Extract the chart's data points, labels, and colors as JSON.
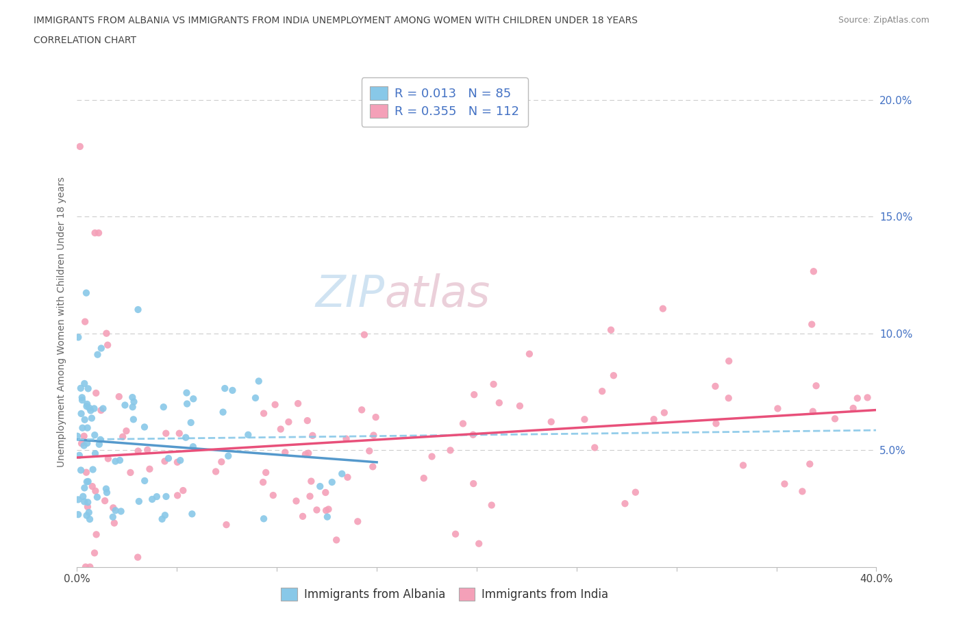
{
  "title_line1": "IMMIGRANTS FROM ALBANIA VS IMMIGRANTS FROM INDIA UNEMPLOYMENT AMONG WOMEN WITH CHILDREN UNDER 18 YEARS",
  "title_line2": "CORRELATION CHART",
  "source": "Source: ZipAtlas.com",
  "ylabel": "Unemployment Among Women with Children Under 18 years",
  "xlim": [
    0.0,
    0.4
  ],
  "ylim": [
    0.0,
    0.21
  ],
  "ytick_positions": [
    0.05,
    0.1,
    0.15,
    0.2
  ],
  "ytick_labels": [
    "5.0%",
    "10.0%",
    "15.0%",
    "20.0%"
  ],
  "xtick_positions": [
    0.0,
    0.05,
    0.1,
    0.15,
    0.2,
    0.25,
    0.3,
    0.35,
    0.4
  ],
  "albania_color": "#88C8E8",
  "india_color": "#F4A0B8",
  "albania_line_color": "#88C8E8",
  "india_line_color": "#E8507A",
  "background_color": "#ffffff",
  "grid_color": "#cccccc",
  "watermark_color": "#D8EEF8",
  "watermark_color2": "#E8D0DC",
  "r_albania": 0.013,
  "n_albania": 85,
  "r_india": 0.355,
  "n_india": 112
}
